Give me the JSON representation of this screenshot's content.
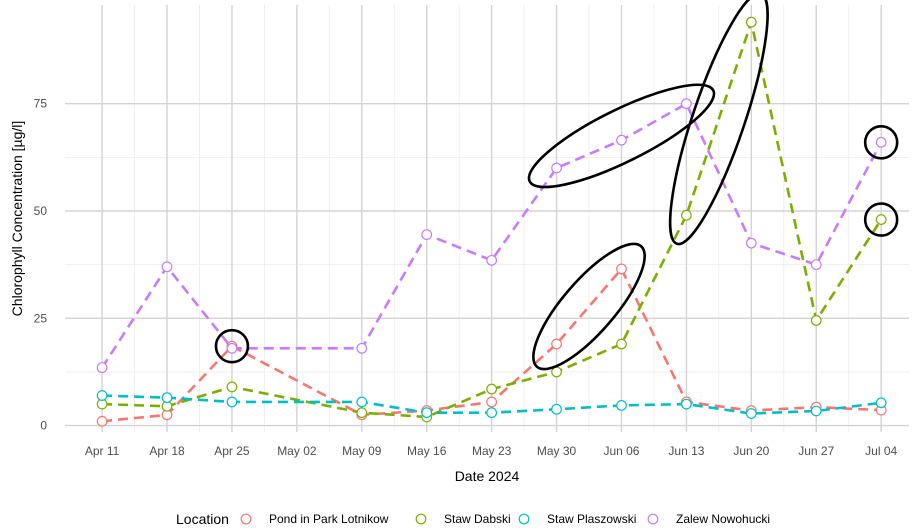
{
  "chart_data": {
    "type": "line",
    "title": "",
    "xlabel": "Date 2024",
    "ylabel": "Chlorophyll Concentration [µg/l]",
    "x": [
      "2024-04-11",
      "2024-04-18",
      "2024-04-25",
      "2024-05-09",
      "2024-05-16",
      "2024-05-23",
      "2024-05-30",
      "2024-06-06",
      "2024-06-13",
      "2024-06-20",
      "2024-06-27",
      "2024-07-04"
    ],
    "x_ticks": [
      "2024-04-11",
      "2024-04-18",
      "2024-04-25",
      "2024-05-02",
      "2024-05-09",
      "2024-05-16",
      "2024-05-23",
      "2024-05-30",
      "2024-06-06",
      "2024-06-13",
      "2024-06-20",
      "2024-06-27",
      "2024-07-04"
    ],
    "x_tick_labels": [
      "Apr 11",
      "Apr 18",
      "Apr 25",
      "May 02",
      "May 09",
      "May 16",
      "May 23",
      "May 30",
      "Jun 06",
      "Jun 13",
      "Jun 20",
      "Jun 27",
      "Jul 04"
    ],
    "xlim": [
      "2024-04-07",
      "2024-07-07"
    ],
    "y_ticks": [
      0,
      25,
      50,
      75
    ],
    "y_tick_labels": [
      "0",
      "25",
      "50",
      "75"
    ],
    "ylim": [
      -1.5,
      98
    ],
    "grid": true,
    "legend_title": "Location",
    "legend_position": "bottom",
    "series": [
      {
        "name": "Pond in Park Lotnikow",
        "color": "#F8766D",
        "values": [
          1.0,
          2.5,
          18.5,
          2.5,
          3.5,
          5.5,
          19.0,
          36.5,
          5.5,
          3.5,
          4.3,
          3.6
        ]
      },
      {
        "name": "Staw Dabski",
        "color": "#7CAE00",
        "values": [
          5.0,
          4.5,
          9.0,
          3.0,
          2.0,
          8.5,
          12.5,
          19.0,
          49.0,
          94.0,
          24.5,
          48.0
        ]
      },
      {
        "name": "Staw Plaszowski",
        "color": "#00BFC4",
        "values": [
          7.0,
          6.5,
          5.5,
          5.5,
          3.0,
          3.0,
          3.8,
          4.7,
          5.0,
          2.8,
          3.4,
          5.3
        ]
      },
      {
        "name": "Zalew Nowohucki",
        "color": "#C77CFF",
        "values": [
          13.5,
          37.0,
          18.0,
          18.0,
          44.5,
          38.5,
          60.0,
          66.5,
          75.0,
          42.5,
          37.5,
          66.0
        ]
      }
    ],
    "highlighted_points": [
      {
        "series": "Pond in Park Lotnikow",
        "x": "2024-04-25",
        "y": 18.5
      },
      {
        "series": "Zalew Nowohucki",
        "x": "2024-07-04",
        "y": 66.0
      },
      {
        "series": "Staw Dabski",
        "x": "2024-07-04",
        "y": 48.0
      }
    ],
    "highlighted_regions": [
      {
        "series": "Zalew Nowohucki",
        "from": "2024-05-30",
        "to": "2024-06-13"
      },
      {
        "series": "Pond in Park Lotnikow",
        "from": "2024-05-30",
        "to": "2024-06-06"
      },
      {
        "series": "Staw Dabski",
        "from": "2024-06-13",
        "to": "2024-06-20"
      }
    ]
  }
}
